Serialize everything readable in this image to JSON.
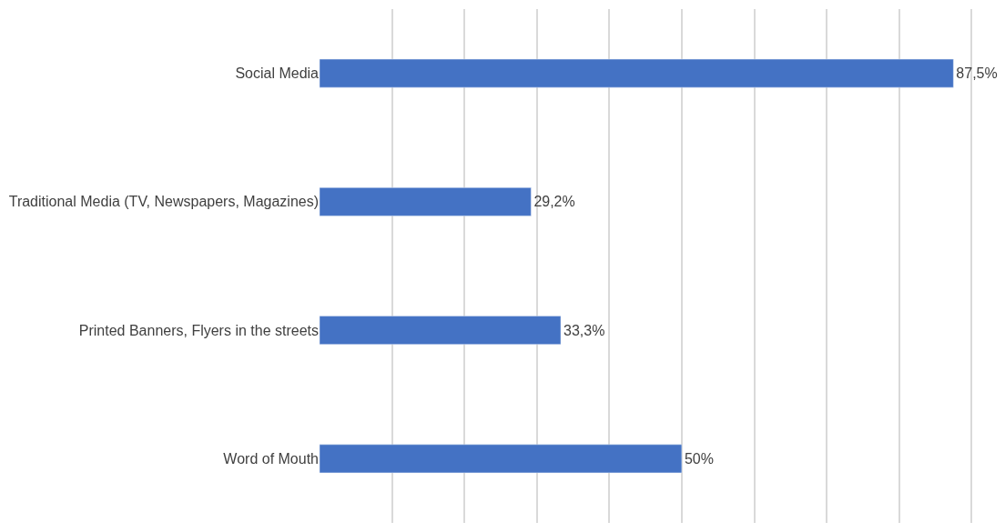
{
  "chart_data": {
    "type": "bar",
    "orientation": "horizontal",
    "categories": [
      "Social Media",
      "Traditional Media (TV, Newspapers, Magazines)",
      "Printed Banners, Flyers in the streets",
      "Word of Mouth"
    ],
    "values": [
      87.5,
      29.2,
      33.3,
      50
    ],
    "value_labels": [
      "87,5%",
      "29,2%",
      "33,3%",
      "50%"
    ],
    "color": "#4472c4",
    "grid": "x",
    "legend": false
  }
}
